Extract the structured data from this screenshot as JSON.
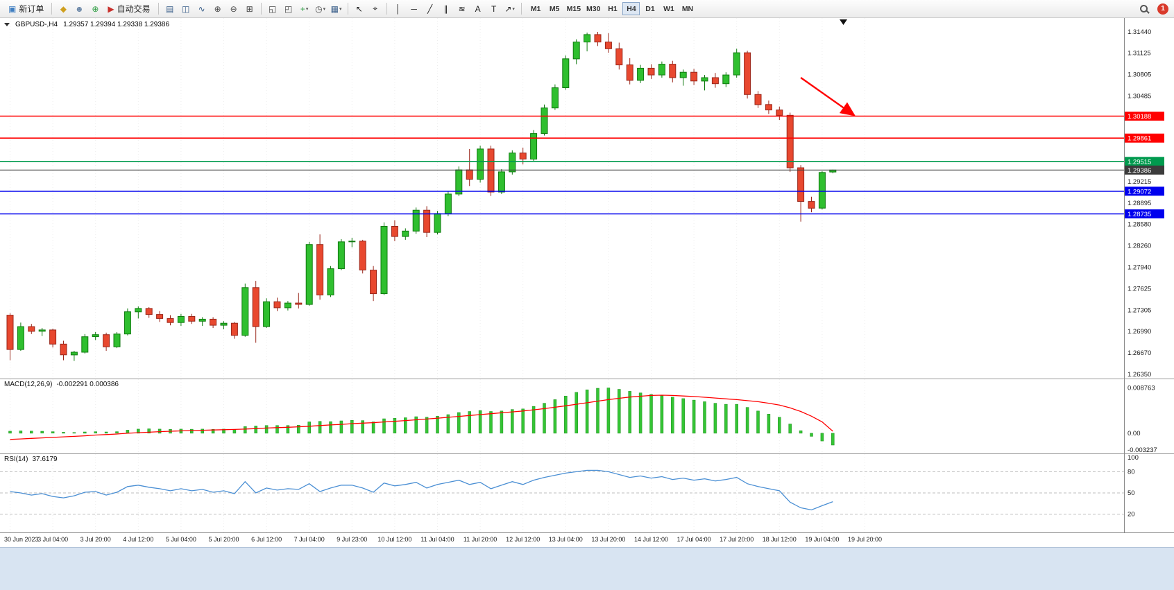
{
  "header": {
    "symbol": "GBPUSD-,H4",
    "ohlc": "1.29357 1.29394 1.29338 1.29386"
  },
  "toolbar": {
    "items": [
      {
        "kind": "button",
        "name": "new-order-button",
        "icon_glyph": "▣",
        "icon_name": "new-order-icon",
        "icon_color": "#3f7ec1",
        "label": "新订单"
      },
      {
        "kind": "sep"
      },
      {
        "kind": "icon",
        "name": "quotes-icon",
        "glyph": "◆",
        "color": "#cf9f1f"
      },
      {
        "kind": "icon",
        "name": "profiles-icon",
        "glyph": "☻",
        "color": "#6b87a8"
      },
      {
        "kind": "icon",
        "name": "community-icon",
        "glyph": "⊕",
        "color": "#2f9e44"
      },
      {
        "kind": "button",
        "name": "auto-trading-button",
        "icon_glyph": "▶",
        "icon_name": "auto-trading-icon",
        "icon_color": "#c9302c",
        "label": "自动交易"
      },
      {
        "kind": "sep"
      },
      {
        "kind": "icon",
        "name": "bar-chart-icon",
        "glyph": "▤",
        "color": "#3a5f8a"
      },
      {
        "kind": "icon",
        "name": "candlestick-chart-icon",
        "glyph": "◫",
        "color": "#3a5f8a"
      },
      {
        "kind": "icon",
        "name": "line-chart-icon",
        "glyph": "∿",
        "color": "#3a5f8a"
      },
      {
        "kind": "icon",
        "name": "zoom-in-icon",
        "glyph": "⊕",
        "color": "#444444"
      },
      {
        "kind": "icon",
        "name": "zoom-out-icon",
        "glyph": "⊖",
        "color": "#444444"
      },
      {
        "kind": "icon",
        "name": "tile-windows-icon",
        "glyph": "⊞",
        "color": "#444444"
      },
      {
        "kind": "sep"
      },
      {
        "kind": "icon",
        "name": "arrange-windows-icon",
        "glyph": "◱",
        "color": "#444444"
      },
      {
        "kind": "icon",
        "name": "cascade-windows-icon",
        "glyph": "◰",
        "color": "#444444"
      },
      {
        "kind": "icon",
        "name": "indicators-icon",
        "glyph": "+",
        "color": "#2f9e44",
        "caret": true
      },
      {
        "kind": "icon",
        "name": "periods-icon",
        "glyph": "◷",
        "color": "#444444",
        "caret": true
      },
      {
        "kind": "icon",
        "name": "templates-icon",
        "glyph": "▦",
        "color": "#3a5f8a",
        "caret": true
      },
      {
        "kind": "sep"
      },
      {
        "kind": "icon",
        "name": "cursor-icon",
        "glyph": "↖",
        "color": "#222222"
      },
      {
        "kind": "icon",
        "name": "crosshair-icon",
        "glyph": "⌖",
        "color": "#222222"
      },
      {
        "kind": "sep"
      },
      {
        "kind": "icon",
        "name": "vertical-line-icon",
        "glyph": "│",
        "color": "#222222"
      },
      {
        "kind": "icon",
        "name": "horizontal-line-icon",
        "glyph": "─",
        "color": "#222222"
      },
      {
        "kind": "icon",
        "name": "trendline-icon",
        "glyph": "╱",
        "color": "#222222"
      },
      {
        "kind": "icon",
        "name": "channel-icon",
        "glyph": "∥",
        "color": "#222222"
      },
      {
        "kind": "icon",
        "name": "fibonacci-icon",
        "glyph": "≋",
        "color": "#222222"
      },
      {
        "kind": "icon",
        "name": "text-icon",
        "glyph": "A",
        "color": "#222222"
      },
      {
        "kind": "icon",
        "name": "text-label-icon",
        "glyph": "T",
        "color": "#222222"
      },
      {
        "kind": "icon",
        "name": "arrows-shapes-icon",
        "glyph": "↗",
        "color": "#222222",
        "caret": true
      },
      {
        "kind": "sep"
      }
    ],
    "timeframes": [
      "M1",
      "M5",
      "M15",
      "M30",
      "H1",
      "H4",
      "D1",
      "W1",
      "MN"
    ],
    "active_timeframe": "H4",
    "notification_count": "1"
  },
  "colors": {
    "candle_up_fill": "#2fbf2f",
    "candle_up_stroke": "#0f7a0f",
    "candle_down_fill": "#e8482f",
    "candle_down_stroke": "#99261a",
    "macd_hist": "#35c435",
    "macd_hist_stroke": "#1d8f1d",
    "macd_signal": "#ff0000",
    "rsi_line": "#4a8fd4",
    "badge": "#d93a2b",
    "bottom_strip": "#d8e4f2",
    "axis_text": "#1a1a1a"
  },
  "chart_data": {
    "type": "candlestick",
    "symbol": "GBPUSD-",
    "timeframe": "H4",
    "ohlc_display": {
      "open": "1.29357",
      "high": "1.29394",
      "low": "1.29338",
      "close": "1.29386"
    },
    "price_axis": {
      "max": 1.3144,
      "min": 1.2635,
      "visible_ticks": [
        "1.31440",
        "1.31125",
        "1.30805",
        "1.30485",
        "1.29215",
        "1.28895",
        "1.28580",
        "1.28260",
        "1.27940",
        "1.27625",
        "1.27305",
        "1.26990",
        "1.26670",
        "1.26350"
      ]
    },
    "levels": [
      {
        "price": 1.30188,
        "label": "1.30188",
        "color": "#ff0000",
        "width": 1.6,
        "name": "resistance-line-upper"
      },
      {
        "price": 1.29861,
        "label": "1.29861",
        "color": "#ff0000",
        "width": 1.6,
        "name": "resistance-line-lower"
      },
      {
        "price": 1.29515,
        "label": "1.29515",
        "color": "#009a4e",
        "width": 1.6,
        "name": "green-level-line"
      },
      {
        "price": 1.29386,
        "label": "1.29386",
        "color": "#3c3c3c",
        "width": 1.0,
        "name": "current-price-line"
      },
      {
        "price": 1.29072,
        "label": "1.29072",
        "color": "#0000ee",
        "width": 1.6,
        "name": "support-line-upper"
      },
      {
        "price": 1.28735,
        "label": "1.28735",
        "color": "#0000ee",
        "width": 1.6,
        "name": "support-line-lower"
      }
    ],
    "annotation_arrow": {
      "from_bar": 74,
      "from_price": 1.3076,
      "to_bar": 79,
      "to_price": 1.302,
      "color": "#ff0000"
    },
    "time_labels": [
      "30 Jun 2023",
      "3 Jul 04:00",
      "3 Jul 20:00",
      "4 Jul 12:00",
      "5 Jul 04:00",
      "5 Jul 20:00",
      "6 Jul 12:00",
      "7 Jul 04:00",
      "9 Jul 23:00",
      "10 Jul 12:00",
      "11 Jul 04:00",
      "11 Jul 20:00",
      "12 Jul 12:00",
      "13 Jul 04:00",
      "13 Jul 20:00",
      "14 Jul 12:00",
      "17 Jul 04:00",
      "17 Jul 20:00",
      "18 Jul 12:00",
      "19 Jul 04:00",
      "19 Jul 20:00"
    ],
    "candles": [
      [
        1.2723,
        1.2726,
        1.2656,
        1.2672
      ],
      [
        1.2672,
        1.2712,
        1.267,
        1.2706
      ],
      [
        1.2706,
        1.271,
        1.2695,
        1.2699
      ],
      [
        1.2699,
        1.2704,
        1.2692,
        1.2701
      ],
      [
        1.2701,
        1.2703,
        1.2675,
        1.268
      ],
      [
        1.268,
        1.2685,
        1.2656,
        1.2664
      ],
      [
        1.2664,
        1.267,
        1.2655,
        1.2668
      ],
      [
        1.2668,
        1.2695,
        1.2666,
        1.2691
      ],
      [
        1.2691,
        1.2698,
        1.2686,
        1.2694
      ],
      [
        1.2694,
        1.2697,
        1.267,
        1.2676
      ],
      [
        1.2676,
        1.2698,
        1.2674,
        1.2695
      ],
      [
        1.2695,
        1.2733,
        1.2693,
        1.2728
      ],
      [
        1.2728,
        1.2736,
        1.2718,
        1.2733
      ],
      [
        1.2733,
        1.2735,
        1.2719,
        1.2724
      ],
      [
        1.2724,
        1.2729,
        1.2713,
        1.2718
      ],
      [
        1.2718,
        1.2723,
        1.2708,
        1.2712
      ],
      [
        1.2712,
        1.2725,
        1.2707,
        1.2721
      ],
      [
        1.2721,
        1.2725,
        1.271,
        1.2714
      ],
      [
        1.2714,
        1.272,
        1.2707,
        1.2717
      ],
      [
        1.2717,
        1.272,
        1.2704,
        1.2708
      ],
      [
        1.2708,
        1.2714,
        1.2702,
        1.2711
      ],
      [
        1.2711,
        1.2713,
        1.2688,
        1.2693
      ],
      [
        1.2693,
        1.277,
        1.2691,
        1.2764
      ],
      [
        1.2764,
        1.2774,
        1.2682,
        1.2706
      ],
      [
        1.2706,
        1.2748,
        1.2704,
        1.2743
      ],
      [
        1.2743,
        1.2749,
        1.2729,
        1.2734
      ],
      [
        1.2734,
        1.2744,
        1.273,
        1.2741
      ],
      [
        1.2741,
        1.2756,
        1.2733,
        1.2739
      ],
      [
        1.2739,
        1.2832,
        1.2737,
        1.2828
      ],
      [
        1.2828,
        1.2843,
        1.2746,
        1.2753
      ],
      [
        1.2753,
        1.2796,
        1.275,
        1.2792
      ],
      [
        1.2792,
        1.2836,
        1.279,
        1.2832
      ],
      [
        1.2832,
        1.2838,
        1.2824,
        1.2833
      ],
      [
        1.2833,
        1.2835,
        1.2785,
        1.279
      ],
      [
        1.279,
        1.2796,
        1.2744,
        1.2755
      ],
      [
        1.2755,
        1.2861,
        1.2753,
        1.2855
      ],
      [
        1.2855,
        1.2864,
        1.2833,
        1.284
      ],
      [
        1.284,
        1.2852,
        1.2835,
        1.2848
      ],
      [
        1.2848,
        1.2883,
        1.2844,
        1.2879
      ],
      [
        1.2879,
        1.2885,
        1.2839,
        1.2846
      ],
      [
        1.2846,
        1.2878,
        1.2843,
        1.2874
      ],
      [
        1.2874,
        1.2908,
        1.287,
        1.2903
      ],
      [
        1.2903,
        1.2944,
        1.29,
        1.2939
      ],
      [
        1.2939,
        1.297,
        1.2915,
        1.2925
      ],
      [
        1.2925,
        1.2975,
        1.292,
        1.297
      ],
      [
        1.297,
        1.2975,
        1.29,
        1.2906
      ],
      [
        1.2906,
        1.294,
        1.2903,
        1.2936
      ],
      [
        1.2936,
        1.2968,
        1.2932,
        1.2964
      ],
      [
        1.2964,
        1.2972,
        1.2947,
        1.2955
      ],
      [
        1.2955,
        1.2998,
        1.2952,
        1.2993
      ],
      [
        1.2993,
        1.3036,
        1.299,
        1.3031
      ],
      [
        1.3031,
        1.3066,
        1.3028,
        1.3061
      ],
      [
        1.3061,
        1.3109,
        1.3058,
        1.3104
      ],
      [
        1.3104,
        1.3133,
        1.3096,
        1.3129
      ],
      [
        1.3129,
        1.3143,
        1.3115,
        1.314
      ],
      [
        1.314,
        1.3144,
        1.3123,
        1.3129
      ],
      [
        1.3129,
        1.3142,
        1.3113,
        1.3119
      ],
      [
        1.3119,
        1.3128,
        1.3088,
        1.3095
      ],
      [
        1.3095,
        1.3105,
        1.3066,
        1.3072
      ],
      [
        1.3072,
        1.3095,
        1.3068,
        1.309
      ],
      [
        1.309,
        1.3096,
        1.3074,
        1.308
      ],
      [
        1.308,
        1.31,
        1.3076,
        1.3096
      ],
      [
        1.3096,
        1.3101,
        1.3069,
        1.3076
      ],
      [
        1.3076,
        1.3088,
        1.3064,
        1.3084
      ],
      [
        1.3084,
        1.3089,
        1.3065,
        1.3071
      ],
      [
        1.3071,
        1.308,
        1.3057,
        1.3076
      ],
      [
        1.3076,
        1.3083,
        1.3061,
        1.3067
      ],
      [
        1.3067,
        1.3084,
        1.3062,
        1.308
      ],
      [
        1.308,
        1.3119,
        1.3076,
        1.3113
      ],
      [
        1.3113,
        1.3116,
        1.3045,
        1.3051
      ],
      [
        1.3051,
        1.3056,
        1.3031,
        1.3036
      ],
      [
        1.3036,
        1.3042,
        1.3022,
        1.3028
      ],
      [
        1.3028,
        1.3033,
        1.3013,
        1.302
      ],
      [
        1.302,
        1.3024,
        1.2936,
        1.2942
      ],
      [
        1.2942,
        1.2946,
        1.2862,
        1.2892
      ],
      [
        1.2892,
        1.2899,
        1.2876,
        1.2882
      ],
      [
        1.2882,
        1.2937,
        1.288,
        1.2935
      ],
      [
        1.29357,
        1.29394,
        1.29338,
        1.29386
      ]
    ],
    "macd": {
      "label": "MACD(12,26,9)",
      "values_text": "-0.002291 0.000386",
      "axis": [
        "0.008763",
        "0.00",
        "-0.003237"
      ],
      "range": [
        -0.0035,
        0.0095
      ],
      "histogram": [
        0.0004,
        0.00045,
        0.00042,
        0.00038,
        0.0003,
        0.0002,
        0.00015,
        0.00025,
        0.0003,
        0.00025,
        0.0003,
        0.0006,
        0.0008,
        0.00085,
        0.0008,
        0.00075,
        0.0008,
        0.00078,
        0.0008,
        0.00075,
        0.0008,
        0.0007,
        0.0013,
        0.0014,
        0.0015,
        0.0015,
        0.0015,
        0.00155,
        0.0022,
        0.0023,
        0.00225,
        0.0024,
        0.0025,
        0.00245,
        0.0022,
        0.0028,
        0.0029,
        0.003,
        0.0032,
        0.0031,
        0.0033,
        0.0036,
        0.004,
        0.0042,
        0.0044,
        0.0042,
        0.0043,
        0.0046,
        0.0047,
        0.0052,
        0.0058,
        0.0065,
        0.0072,
        0.0079,
        0.0084,
        0.0087,
        0.00876,
        0.0085,
        0.0081,
        0.0078,
        0.0075,
        0.0073,
        0.007,
        0.0067,
        0.0064,
        0.0061,
        0.0058,
        0.0056,
        0.0056,
        0.005,
        0.0043,
        0.0037,
        0.0031,
        0.0018,
        0.0005,
        -0.0006,
        -0.0015,
        -0.00229
      ],
      "signal": [
        -0.0012,
        -0.0011,
        -0.001,
        -0.0009,
        -0.0008,
        -0.0007,
        -0.0006,
        -0.0005,
        -0.00035,
        -0.00025,
        -0.00015,
        0.0,
        0.0001,
        0.0002,
        0.0003,
        0.00038,
        0.00045,
        0.00052,
        0.00058,
        0.00063,
        0.00068,
        0.00074,
        0.0008,
        0.0009,
        0.001,
        0.00108,
        0.00115,
        0.00125,
        0.00135,
        0.00148,
        0.0016,
        0.00172,
        0.00185,
        0.00195,
        0.00205,
        0.00218,
        0.0023,
        0.00245,
        0.0026,
        0.00275,
        0.0029,
        0.00308,
        0.00325,
        0.00343,
        0.0036,
        0.00378,
        0.00395,
        0.00413,
        0.0043,
        0.00453,
        0.00475,
        0.00503,
        0.0053,
        0.0056,
        0.0059,
        0.0062,
        0.0065,
        0.00675,
        0.007,
        0.00715,
        0.0073,
        0.00735,
        0.0073,
        0.0072,
        0.0071,
        0.00695,
        0.0068,
        0.00665,
        0.0065,
        0.0063,
        0.0061,
        0.0058,
        0.00545,
        0.0049,
        0.0042,
        0.0033,
        0.0022,
        0.00039
      ]
    },
    "rsi": {
      "label": "RSI(14)",
      "value": "37.6179",
      "axis": [
        "100",
        "80",
        "50",
        "20"
      ],
      "level_lines": [
        80,
        50,
        20
      ],
      "range": [
        0,
        100
      ],
      "series": [
        52,
        50,
        47,
        49,
        45,
        43,
        46,
        51,
        52,
        47,
        51,
        59,
        61,
        58,
        56,
        53,
        56,
        53,
        55,
        51,
        53,
        49,
        66,
        50,
        57,
        54,
        56,
        55,
        63,
        52,
        57,
        61,
        61,
        57,
        51,
        64,
        60,
        62,
        65,
        57,
        62,
        65,
        68,
        62,
        65,
        56,
        61,
        66,
        62,
        68,
        72,
        75,
        78,
        80,
        82,
        82,
        80,
        76,
        72,
        74,
        71,
        73,
        69,
        71,
        68,
        70,
        67,
        69,
        72,
        63,
        59,
        56,
        53,
        37,
        29,
        26,
        32,
        37.6
      ]
    }
  }
}
